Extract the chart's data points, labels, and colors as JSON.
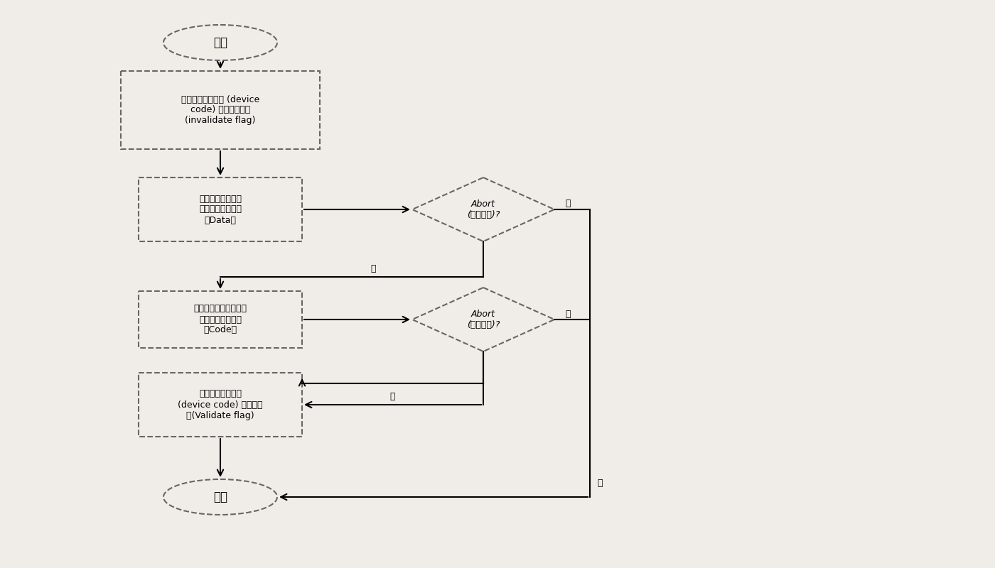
{
  "bg_color": "#f0ede8",
  "line_color": "#000000",
  "box_fill": "#f0ede8",
  "box_edge": "#666666",
  "arrow_color": "#000000",
  "start_label": "开始",
  "end_label": "结束",
  "box1_lines": [
    "标定设备内建程序 (device",
    "code) 为不可用状态",
    "(invalidate flag)"
  ],
  "box2_lines": [
    "从卡片读取资源档",
    "更新设备内建资源",
    "（Data）"
  ],
  "box3_lines": [
    "从外部卡片读取程序档",
    "更新设备内建程序",
    "（Code）"
  ],
  "box4_lines": [
    "更新设备内建程序",
    "(device code) 为可用状",
    "态(Validate flag)"
  ],
  "diamond1_lines": [
    "Abort",
    "(意外中断)?"
  ],
  "diamond2_lines": [
    "Abort",
    "(意外中断)?"
  ],
  "yes_label": "是",
  "no_label1": "否",
  "no_label2": "否",
  "font_size_box": 9,
  "font_size_label": 9,
  "font_size_terminal": 12
}
